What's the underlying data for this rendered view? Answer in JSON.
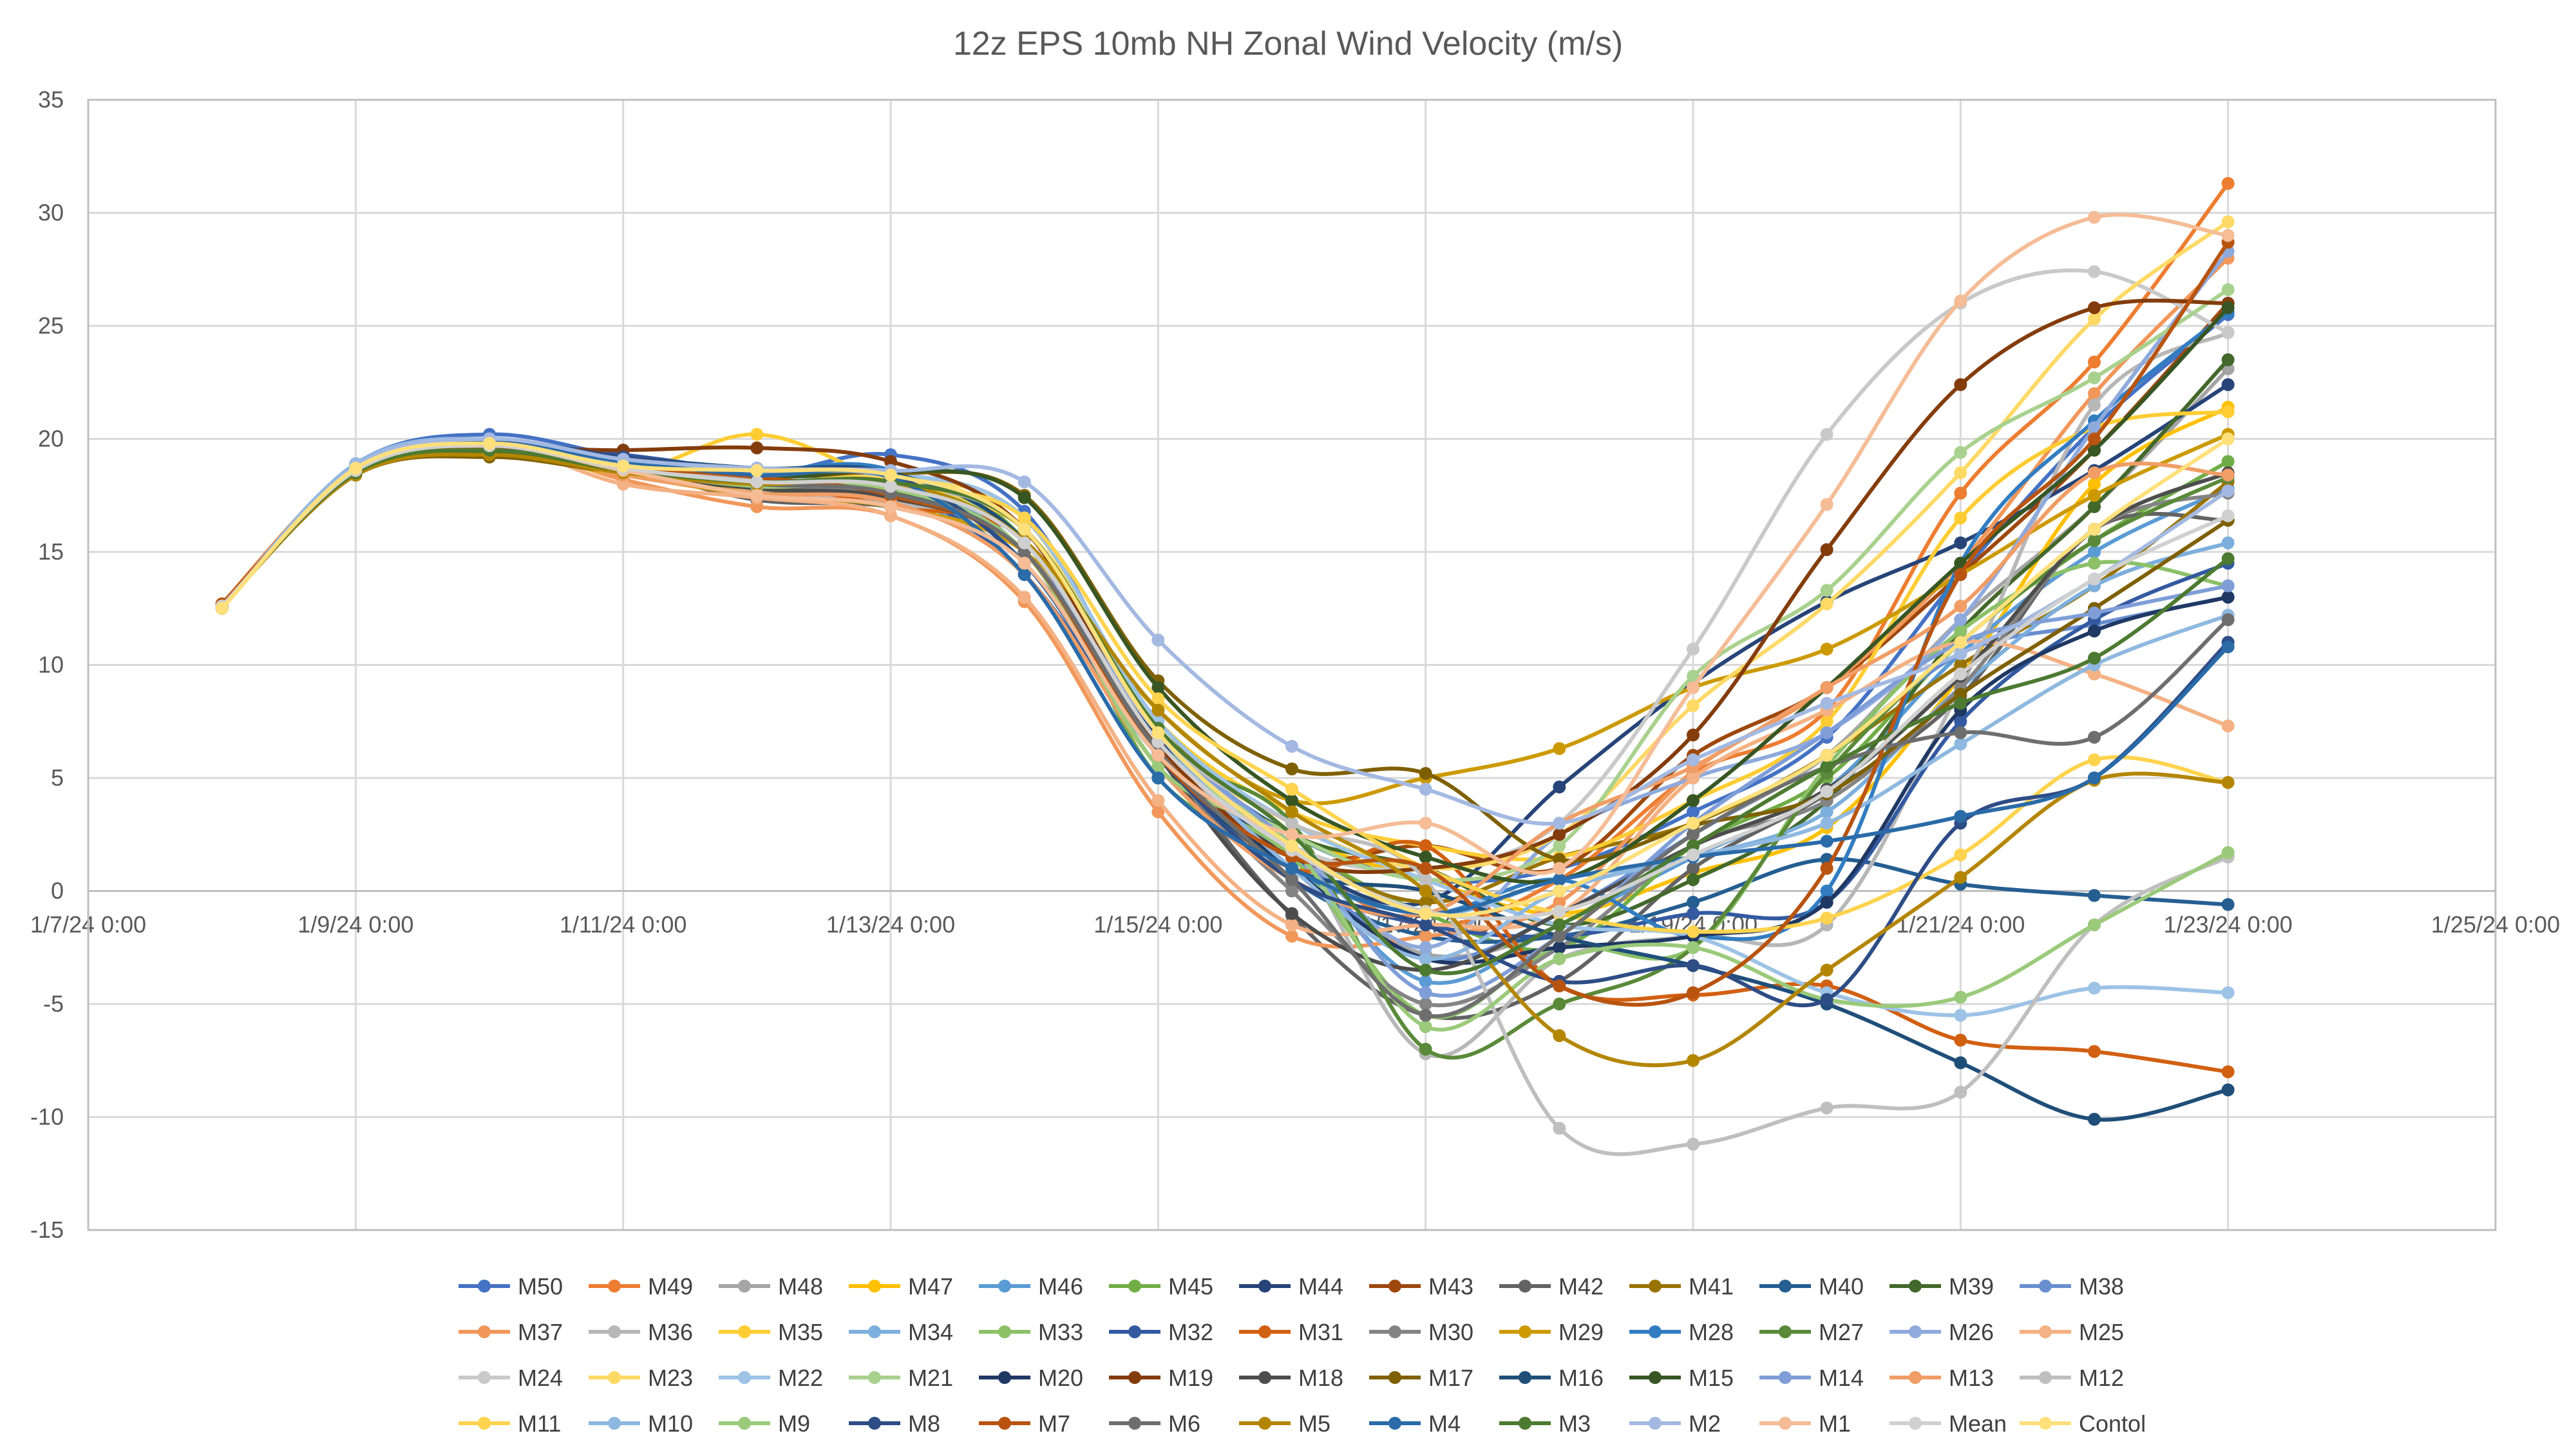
{
  "chart_data": {
    "type": "line",
    "title": "12z EPS 10mb NH Zonal Wind Velocity (m/s)",
    "xlabel": "",
    "ylabel": "",
    "ylim": [
      -15,
      35
    ],
    "y_ticks": [
      "-15",
      "-10",
      "-5",
      "0",
      "5",
      "10",
      "15",
      "20",
      "25",
      "30",
      "35"
    ],
    "xlim": [
      "2024-01-07T00:00",
      "2024-01-25T00:00"
    ],
    "x_ticks": [
      "1/7/24 0:00",
      "1/9/24 0:00",
      "1/11/24 0:00",
      "1/13/24 0:00",
      "1/15/24 0:00",
      "1/17/24 0:00",
      "1/19/24 0:00",
      "1/21/24 0:00",
      "1/23/24 0:00",
      "1/25/24 0:00"
    ],
    "x": [
      "2024-01-08T00:00",
      "2024-01-09T00:00",
      "2024-01-10T00:00",
      "2024-01-11T00:00",
      "2024-01-12T00:00",
      "2024-01-13T00:00",
      "2024-01-14T00:00",
      "2024-01-15T00:00",
      "2024-01-16T00:00",
      "2024-01-17T00:00",
      "2024-01-18T00:00",
      "2024-01-19T00:00",
      "2024-01-20T00:00",
      "2024-01-21T00:00",
      "2024-01-22T00:00",
      "2024-01-23T00:00"
    ],
    "grid": true,
    "legend_position": "bottom",
    "series": [
      {
        "name": "M50",
        "color": "#4472C4",
        "values": [
          12.6,
          18.9,
          20.2,
          19.2,
          18.4,
          19.3,
          16.8,
          7.2,
          2.5,
          0.5,
          1.0,
          3.5,
          6.8,
          14.0,
          20.5,
          25.5
        ]
      },
      {
        "name": "M49",
        "color": "#ED7D31",
        "values": [
          12.7,
          18.8,
          19.8,
          18.9,
          18.0,
          17.2,
          16.0,
          6.5,
          1.5,
          -1.5,
          0.5,
          5.2,
          8.0,
          17.6,
          23.4,
          31.3
        ]
      },
      {
        "name": "M48",
        "color": "#A5A5A5",
        "values": [
          12.5,
          18.7,
          19.5,
          18.8,
          17.5,
          17.0,
          14.5,
          5.5,
          1.0,
          -2.8,
          -1.5,
          2.5,
          6.0,
          12.0,
          17.0,
          23.1
        ]
      },
      {
        "name": "M47",
        "color": "#FFC000",
        "values": [
          12.6,
          18.6,
          19.4,
          18.4,
          17.8,
          17.5,
          15.5,
          6.5,
          2.5,
          0.5,
          -1.0,
          0.8,
          2.8,
          9.5,
          18.0,
          21.4
        ]
      },
      {
        "name": "M46",
        "color": "#5B9BD5",
        "values": [
          12.5,
          18.8,
          19.7,
          18.9,
          18.0,
          17.7,
          14.0,
          6.0,
          1.5,
          -4.0,
          -1.5,
          1.5,
          4.5,
          10.5,
          15.0,
          17.8
        ]
      },
      {
        "name": "M45",
        "color": "#70AD47",
        "values": [
          12.6,
          18.5,
          19.5,
          18.5,
          18.2,
          18.6,
          15.5,
          5.0,
          2.0,
          -1.0,
          -2.5,
          2.0,
          5.0,
          11.0,
          15.5,
          19.0
        ]
      },
      {
        "name": "M44",
        "color": "#264478",
        "values": [
          12.6,
          18.7,
          19.9,
          19.0,
          18.5,
          18.6,
          14.5,
          6.8,
          1.5,
          -0.5,
          4.6,
          9.2,
          12.8,
          15.4,
          18.6,
          22.4
        ]
      },
      {
        "name": "M43",
        "color": "#9E480E",
        "values": [
          12.6,
          18.6,
          19.6,
          19.0,
          18.3,
          18.0,
          15.0,
          6.0,
          1.5,
          2.0,
          1.0,
          6.0,
          9.0,
          14.0,
          19.5,
          26.0
        ]
      },
      {
        "name": "M42",
        "color": "#636363",
        "values": [
          12.6,
          18.5,
          19.6,
          18.7,
          17.3,
          17.0,
          15.5,
          6.4,
          -1.1,
          -5.5,
          -4.0,
          1.0,
          4.3,
          8.6,
          16.0,
          16.4
        ]
      },
      {
        "name": "M41",
        "color": "#997300",
        "values": [
          12.6,
          18.4,
          19.3,
          18.5,
          17.9,
          18.0,
          15.0,
          7.5,
          2.0,
          -0.5,
          1.5,
          3.0,
          6.0,
          10.0,
          13.5,
          18.1
        ]
      },
      {
        "name": "M40",
        "color": "#255E91",
        "values": [
          12.6,
          18.6,
          19.8,
          19.1,
          18.7,
          18.4,
          15.0,
          6.0,
          0.5,
          -2.0,
          -2.0,
          -0.5,
          1.4,
          0.3,
          -0.2,
          -0.6
        ]
      },
      {
        "name": "M39",
        "color": "#43682B",
        "values": [
          12.6,
          18.4,
          19.3,
          18.6,
          17.6,
          17.7,
          15.5,
          7.0,
          2.5,
          1.0,
          -1.5,
          0.5,
          4.0,
          11.5,
          17.0,
          23.5
        ]
      },
      {
        "name": "M38",
        "color": "#698ED0",
        "values": [
          12.6,
          18.8,
          19.9,
          19.1,
          18.4,
          18.2,
          15.5,
          7.0,
          1.5,
          -3.0,
          -1.0,
          2.5,
          6.0,
          10.5,
          11.8,
          13.0
        ]
      },
      {
        "name": "M37",
        "color": "#F1975A",
        "values": [
          12.7,
          18.6,
          19.8,
          18.2,
          17.0,
          16.6,
          12.8,
          3.5,
          -2.0,
          -2.0,
          -0.5,
          5.3,
          9.0,
          14.5,
          22.0,
          28.0
        ]
      },
      {
        "name": "M36",
        "color": "#B7B7B7",
        "values": [
          12.5,
          18.8,
          19.8,
          18.5,
          17.5,
          17.2,
          15.0,
          6.0,
          2.0,
          -7.2,
          -3.0,
          -2.0,
          -1.5,
          9.0,
          21.5,
          24.7
        ]
      },
      {
        "name": "M35",
        "color": "#FFCD33",
        "values": [
          12.6,
          18.6,
          19.7,
          18.5,
          20.2,
          18.0,
          16.0,
          7.5,
          3.5,
          2.0,
          1.5,
          4.0,
          7.5,
          16.5,
          20.5,
          21.2
        ]
      },
      {
        "name": "M34",
        "color": "#7CAFDD",
        "values": [
          12.5,
          18.9,
          20.0,
          19.0,
          18.6,
          18.2,
          14.0,
          6.0,
          2.0,
          -1.0,
          0.5,
          1.5,
          3.5,
          9.0,
          13.5,
          15.4
        ]
      },
      {
        "name": "M33",
        "color": "#8CC168",
        "values": [
          12.6,
          18.6,
          19.5,
          18.6,
          17.9,
          18.0,
          15.0,
          5.5,
          1.5,
          -5.5,
          -2.5,
          -2.5,
          5.5,
          11.5,
          14.5,
          13.5
        ]
      },
      {
        "name": "M32",
        "color": "#335AA1",
        "values": [
          12.6,
          18.5,
          19.7,
          19.3,
          18.5,
          18.0,
          14.0,
          6.0,
          0.5,
          -1.5,
          -2.0,
          -1.0,
          -0.5,
          7.5,
          12.0,
          14.5
        ]
      },
      {
        "name": "M31",
        "color": "#D26012",
        "values": [
          12.7,
          18.6,
          19.6,
          18.7,
          18.1,
          17.0,
          15.5,
          6.5,
          1.0,
          2.0,
          -4.2,
          -4.6,
          -4.2,
          -6.6,
          -7.1,
          -8.0
        ]
      },
      {
        "name": "M30",
        "color": "#848484",
        "values": [
          12.6,
          18.5,
          19.7,
          18.8,
          18.0,
          17.5,
          15.0,
          6.0,
          0.0,
          -5.0,
          -2.5,
          2.0,
          4.0,
          9.0,
          16.0,
          17.6
        ]
      },
      {
        "name": "M29",
        "color": "#CC9A00",
        "values": [
          12.6,
          18.4,
          19.3,
          18.4,
          17.5,
          17.0,
          15.0,
          8.0,
          4.0,
          5.0,
          6.3,
          9.0,
          10.7,
          14.0,
          17.5,
          20.2
        ]
      },
      {
        "name": "M28",
        "color": "#327DC2",
        "values": [
          12.6,
          18.7,
          19.9,
          19.0,
          18.6,
          18.6,
          14.5,
          6.0,
          1.0,
          -1.0,
          0.5,
          -2.0,
          0.0,
          14.5,
          20.8,
          25.6
        ]
      },
      {
        "name": "M27",
        "color": "#5A8A39",
        "values": [
          12.6,
          18.5,
          19.5,
          18.6,
          18.2,
          18.0,
          15.0,
          6.5,
          3.0,
          -7.0,
          -5.0,
          -2.5,
          5.2,
          11.0,
          15.5,
          18.3
        ]
      },
      {
        "name": "M26",
        "color": "#8FAADC",
        "values": [
          12.6,
          18.8,
          19.9,
          19.0,
          18.4,
          18.0,
          16.0,
          7.0,
          2.0,
          -2.5,
          2.5,
          5.0,
          7.0,
          12.0,
          20.5,
          28.3
        ]
      },
      {
        "name": "M25",
        "color": "#F4B183",
        "values": [
          12.6,
          18.7,
          19.8,
          18.0,
          17.4,
          16.6,
          13.0,
          4.0,
          -1.5,
          -1.5,
          -1.0,
          5.0,
          8.0,
          11.0,
          9.6,
          7.3
        ]
      },
      {
        "name": "M24",
        "color": "#C9C9C9",
        "values": [
          12.5,
          18.9,
          20.0,
          18.9,
          18.4,
          18.4,
          16.5,
          7.0,
          2.0,
          1.0,
          3.0,
          10.7,
          20.2,
          26.0,
          27.4,
          24.7
        ]
      },
      {
        "name": "M23",
        "color": "#FFD966",
        "values": [
          12.5,
          18.8,
          19.8,
          18.6,
          18.3,
          18.2,
          16.5,
          7.0,
          3.0,
          1.0,
          2.5,
          8.2,
          12.7,
          18.5,
          25.3,
          29.6
        ]
      },
      {
        "name": "M22",
        "color": "#9DC3E6",
        "values": [
          12.5,
          18.9,
          20.0,
          19.0,
          18.6,
          18.5,
          16.5,
          7.5,
          3.0,
          0.5,
          -1.5,
          -2.0,
          -4.5,
          -5.5,
          -4.3,
          -4.5
        ]
      },
      {
        "name": "M21",
        "color": "#A9D18E",
        "values": [
          12.5,
          18.7,
          19.7,
          18.8,
          18.1,
          18.0,
          15.5,
          6.5,
          2.5,
          0.5,
          2.0,
          9.5,
          13.3,
          19.4,
          22.7,
          26.6
        ]
      },
      {
        "name": "M20",
        "color": "#1F3864",
        "values": [
          12.6,
          18.6,
          19.6,
          18.7,
          18.0,
          17.8,
          15.0,
          6.0,
          1.0,
          -3.0,
          -2.5,
          -2.0,
          -0.5,
          8.0,
          11.5,
          13.0
        ]
      },
      {
        "name": "M19",
        "color": "#843C0C",
        "values": [
          12.6,
          18.5,
          19.5,
          19.5,
          19.6,
          19.0,
          16.0,
          6.5,
          1.5,
          1.0,
          2.5,
          6.9,
          15.1,
          22.4,
          25.8,
          26.0
        ]
      },
      {
        "name": "M18",
        "color": "#4D4D4D",
        "values": [
          12.6,
          18.4,
          19.3,
          18.5,
          17.8,
          17.4,
          15.0,
          6.0,
          -1.0,
          -3.5,
          -1.0,
          2.0,
          4.5,
          9.5,
          16.0,
          18.5
        ]
      },
      {
        "name": "M17",
        "color": "#7F6000",
        "values": [
          12.6,
          18.4,
          19.2,
          18.5,
          18.2,
          18.5,
          17.5,
          9.3,
          5.4,
          5.2,
          1.4,
          2.9,
          4.3,
          8.7,
          12.5,
          16.4
        ]
      },
      {
        "name": "M16",
        "color": "#1F4E79",
        "values": [
          12.6,
          18.7,
          19.9,
          19.2,
          18.7,
          18.5,
          15.5,
          6.2,
          1.0,
          0.0,
          -2.0,
          -3.3,
          -5.0,
          -7.6,
          -10.1,
          -8.8
        ]
      },
      {
        "name": "M15",
        "color": "#375623",
        "values": [
          12.6,
          18.5,
          19.4,
          18.8,
          18.2,
          18.6,
          17.4,
          9.0,
          4.0,
          1.5,
          0.5,
          4.0,
          9.0,
          14.5,
          19.5,
          25.8
        ]
      },
      {
        "name": "M14",
        "color": "#7F9ED8",
        "values": [
          12.6,
          18.7,
          19.8,
          19.0,
          18.5,
          18.3,
          15.0,
          7.0,
          2.0,
          -4.5,
          -2.0,
          3.0,
          7.0,
          11.0,
          12.3,
          13.5
        ]
      },
      {
        "name": "M13",
        "color": "#F09D66",
        "values": [
          12.6,
          18.5,
          19.6,
          18.4,
          17.6,
          17.2,
          14.0,
          5.5,
          0.5,
          -1.0,
          3.0,
          5.5,
          9.0,
          12.6,
          18.5,
          18.4
        ]
      },
      {
        "name": "M12",
        "color": "#BFBFBF",
        "values": [
          12.5,
          18.7,
          19.7,
          18.7,
          18.2,
          18.0,
          16.0,
          7.0,
          3.0,
          0.5,
          -10.5,
          -11.2,
          -9.6,
          -8.9,
          -1.5,
          1.5
        ]
      },
      {
        "name": "M11",
        "color": "#FFD34D",
        "values": [
          12.6,
          18.6,
          19.6,
          18.5,
          18.0,
          17.8,
          16.5,
          8.5,
          4.5,
          1.0,
          -1.0,
          -1.8,
          -1.2,
          1.6,
          5.8,
          4.8
        ]
      },
      {
        "name": "M10",
        "color": "#8EB8E0",
        "values": [
          12.5,
          18.9,
          20.0,
          19.1,
          18.6,
          18.4,
          16.0,
          7.0,
          1.0,
          -3.0,
          0.0,
          1.5,
          3.0,
          6.5,
          10.0,
          12.2
        ]
      },
      {
        "name": "M9",
        "color": "#9ACA7A",
        "values": [
          12.6,
          18.5,
          19.5,
          18.6,
          17.9,
          17.8,
          15.0,
          5.5,
          2.0,
          -6.0,
          -3.0,
          -2.5,
          -4.8,
          -4.7,
          -1.5,
          1.7
        ]
      },
      {
        "name": "M8",
        "color": "#2E4D86",
        "values": [
          12.6,
          18.6,
          19.8,
          19.2,
          18.6,
          18.4,
          14.5,
          6.0,
          0.5,
          -1.5,
          -4.0,
          -3.3,
          -4.8,
          3.0,
          5.0,
          11.0
        ]
      },
      {
        "name": "M7",
        "color": "#B85410",
        "values": [
          12.7,
          18.5,
          19.6,
          18.8,
          18.3,
          17.5,
          15.0,
          6.0,
          1.5,
          1.0,
          -4.2,
          -4.5,
          1.0,
          14.0,
          20.0,
          28.7
        ]
      },
      {
        "name": "M6",
        "color": "#6E6E6E",
        "values": [
          12.6,
          18.5,
          19.5,
          18.7,
          18.0,
          17.6,
          15.0,
          6.2,
          0.5,
          -5.5,
          -2.0,
          2.5,
          5.5,
          7.0,
          6.8,
          12.0
        ]
      },
      {
        "name": "M5",
        "color": "#B48600",
        "values": [
          12.6,
          18.4,
          19.3,
          18.5,
          18.0,
          18.1,
          15.5,
          8.0,
          3.5,
          0.0,
          -6.4,
          -7.5,
          -3.5,
          0.6,
          4.9,
          4.8
        ]
      },
      {
        "name": "M4",
        "color": "#2A6BA8",
        "values": [
          12.6,
          18.6,
          19.8,
          19.0,
          18.4,
          18.3,
          14.0,
          5.0,
          1.0,
          -1.0,
          0.5,
          1.5,
          2.2,
          3.3,
          5.0,
          10.8
        ]
      },
      {
        "name": "M3",
        "color": "#4C7A31",
        "values": [
          12.6,
          18.5,
          19.5,
          18.6,
          18.1,
          18.1,
          16.0,
          7.2,
          2.5,
          -3.5,
          -1.5,
          2.0,
          5.5,
          8.3,
          10.3,
          14.7
        ]
      },
      {
        "name": "M2",
        "color": "#A3B9E2",
        "values": [
          12.5,
          18.8,
          20.0,
          19.1,
          18.7,
          18.6,
          18.1,
          11.1,
          6.4,
          4.5,
          3.0,
          5.8,
          8.3,
          10.5,
          13.8,
          17.7
        ]
      },
      {
        "name": "M1",
        "color": "#F5BC96",
        "values": [
          12.6,
          18.6,
          19.7,
          18.6,
          17.5,
          17.0,
          14.5,
          6.0,
          2.5,
          3.0,
          1.0,
          9.0,
          17.1,
          26.1,
          29.8,
          29.0
        ]
      },
      {
        "name": "Mean",
        "color": "#D0D0D0",
        "values": [
          12.6,
          18.6,
          19.7,
          18.7,
          18.1,
          17.9,
          15.4,
          6.6,
          1.8,
          -0.9,
          -0.9,
          1.6,
          4.4,
          9.6,
          13.8,
          16.6
        ]
      },
      {
        "name": "Contol",
        "color": "#FFE07A",
        "values": [
          12.5,
          18.7,
          19.8,
          18.8,
          18.6,
          18.4,
          16.0,
          7.0,
          2.0,
          -1.0,
          0.0,
          3.0,
          6.0,
          11.0,
          16.0,
          20.0
        ]
      }
    ]
  }
}
